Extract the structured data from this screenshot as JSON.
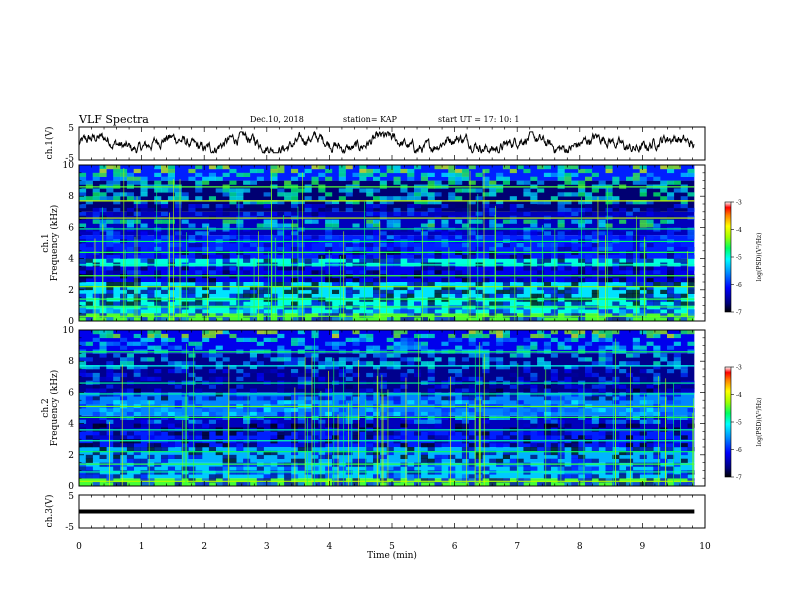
{
  "header": {
    "title": "VLF Spectra",
    "date": "Dec.10, 2018",
    "station": "station= KAP",
    "start": "start  UT =   17: 10: 1"
  },
  "chart_data": [
    {
      "type": "line",
      "name": "ch1-waveform",
      "ylabel": "ch.1(V)",
      "ylim": [
        -5,
        5
      ],
      "y_ticks": [
        "5",
        "-5"
      ],
      "x_range_min": [
        0,
        9.83
      ],
      "series_summary": "noisy waveform fluctuating roughly between -2 and +3 V"
    },
    {
      "type": "heatmap",
      "name": "ch1-spectrogram",
      "ylabel_channel": "ch.1",
      "ylabel": "Frequency (kHz)",
      "ylim_khz": [
        0,
        10
      ],
      "y_ticks": [
        "0",
        "2",
        "4",
        "6",
        "8",
        "10"
      ],
      "colorbar": {
        "label": "log(PSD)(V²/Hz)",
        "range": [
          -7,
          -3
        ],
        "ticks": [
          "-3",
          "-4",
          "-5",
          "-6",
          "-7"
        ]
      },
      "bands_khz": [
        {
          "from": 0.0,
          "to": 0.5,
          "level": -4.5
        },
        {
          "from": 0.5,
          "to": 1.5,
          "level": -5.0
        },
        {
          "from": 1.5,
          "to": 2.5,
          "level": -5.2
        },
        {
          "from": 2.5,
          "to": 3.5,
          "level": -6.2
        },
        {
          "from": 3.5,
          "to": 4.0,
          "level": -5.0
        },
        {
          "from": 4.0,
          "to": 5.5,
          "level": -6.0
        },
        {
          "from": 5.5,
          "to": 7.0,
          "level": -6.4
        },
        {
          "from": 7.0,
          "to": 9.0,
          "level": -6.7
        },
        {
          "from": 9.0,
          "to": 10.0,
          "level": -6.0
        }
      ]
    },
    {
      "type": "heatmap",
      "name": "ch2-spectrogram",
      "ylabel_channel": "ch.2",
      "ylabel": "Frequency (kHz)",
      "ylim_khz": [
        0,
        10
      ],
      "y_ticks": [
        "0",
        "2",
        "4",
        "6",
        "8",
        "10"
      ],
      "colorbar": {
        "label": "log(PSD)(V²/Hz)",
        "range": [
          -7,
          -3
        ],
        "ticks": [
          "-3",
          "-4",
          "-5",
          "-6",
          "-7"
        ]
      },
      "bands_khz": [
        {
          "from": 0.0,
          "to": 0.5,
          "level": -4.5
        },
        {
          "from": 0.5,
          "to": 1.5,
          "level": -5.3
        },
        {
          "from": 1.5,
          "to": 2.5,
          "level": -5.4
        },
        {
          "from": 2.5,
          "to": 3.5,
          "level": -6.0
        },
        {
          "from": 3.5,
          "to": 4.5,
          "level": -6.4
        },
        {
          "from": 4.5,
          "to": 6.0,
          "level": -5.6
        },
        {
          "from": 6.0,
          "to": 8.5,
          "level": -6.6
        },
        {
          "from": 8.5,
          "to": 10.0,
          "level": -6.2
        }
      ]
    },
    {
      "type": "line",
      "name": "ch3-waveform",
      "ylabel": "ch.3(V)",
      "ylim": [
        -5,
        5
      ],
      "y_ticks": [
        "5",
        "-5"
      ],
      "constant_value": 0
    }
  ],
  "time_axis": {
    "xlabel": "Time (min)",
    "xlim": [
      0,
      10
    ],
    "ticks": [
      "0",
      "1",
      "2",
      "3",
      "4",
      "5",
      "6",
      "7",
      "8",
      "9",
      "10"
    ],
    "data_end_min": 9.83
  },
  "colors": {
    "axes": "#000000",
    "colormap": [
      "#00007a",
      "#0000ff",
      "#0080ff",
      "#00ffff",
      "#00ff80",
      "#80ff00",
      "#ffff00",
      "#ff8000",
      "#ff0000",
      "#ffffff"
    ]
  }
}
